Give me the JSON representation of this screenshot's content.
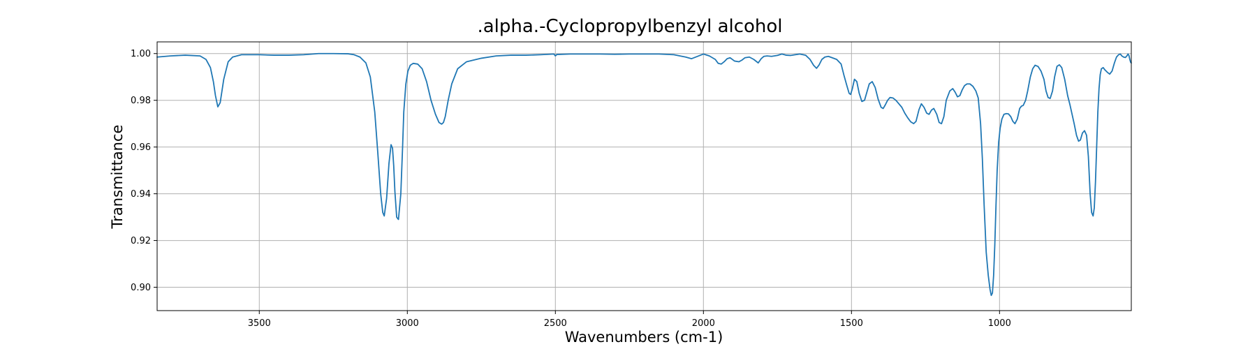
{
  "chart_data": {
    "type": "line",
    "title": ".alpha.-Cyclopropylbenzyl alcohol",
    "xlabel": "Wavenumbers (cm-1)",
    "ylabel": "Transmittance",
    "xlim": [
      3845,
      555
    ],
    "ylim": [
      0.89,
      1.005
    ],
    "x_ticks": [
      3500,
      3000,
      2500,
      2000,
      1500,
      1000
    ],
    "y_ticks": [
      0.9,
      0.92,
      0.94,
      0.96,
      0.98,
      1.0
    ],
    "x_tick_labels": [
      "3500",
      "3000",
      "2500",
      "2000",
      "1500",
      "1000"
    ],
    "y_tick_labels": [
      "0.90",
      "0.92",
      "0.94",
      "0.96",
      "0.98",
      "1.00"
    ],
    "grid": true,
    "line_color": "#1f77b4",
    "series": [
      {
        "x": [
          3845,
          3800,
          3750,
          3700,
          3680,
          3665,
          3655,
          3648,
          3640,
          3632,
          3620,
          3605,
          3590,
          3560,
          3500,
          3450,
          3400,
          3350,
          3300,
          3250,
          3200,
          3180,
          3160,
          3140,
          3125,
          3110,
          3100,
          3090,
          3083,
          3078,
          3070,
          3062,
          3055,
          3050,
          3046,
          3042,
          3036,
          3030,
          3022,
          3016,
          3012,
          3005,
          2998,
          2990,
          2980,
          2965,
          2950,
          2935,
          2920,
          2905,
          2893,
          2884,
          2878,
          2872,
          2862,
          2850,
          2830,
          2800,
          2750,
          2700,
          2650,
          2600,
          2550,
          2505,
          2500,
          2495,
          2450,
          2400,
          2350,
          2300,
          2250,
          2200,
          2150,
          2100,
          2060,
          2040,
          2000,
          1980,
          1960,
          1950,
          1940,
          1930,
          1920,
          1910,
          1895,
          1880,
          1870,
          1860,
          1845,
          1830,
          1815,
          1805,
          1796,
          1785,
          1770,
          1750,
          1735,
          1720,
          1705,
          1690,
          1675,
          1655,
          1640,
          1628,
          1618,
          1610,
          1600,
          1590,
          1578,
          1565,
          1550,
          1535,
          1525,
          1515,
          1508,
          1503,
          1497,
          1490,
          1482,
          1474,
          1465,
          1456,
          1448,
          1440,
          1430,
          1420,
          1410,
          1400,
          1393,
          1386,
          1378,
          1370,
          1360,
          1350,
          1340,
          1330,
          1320,
          1310,
          1300,
          1290,
          1282,
          1272,
          1264,
          1255,
          1246,
          1238,
          1230,
          1222,
          1212,
          1204,
          1196,
          1188,
          1180,
          1168,
          1158,
          1150,
          1142,
          1134,
          1126,
          1118,
          1110,
          1100,
          1090,
          1080,
          1072,
          1064,
          1058,
          1052,
          1045,
          1038,
          1032,
          1028,
          1024,
          1020,
          1016,
          1012,
          1008,
          1003,
          998,
          992,
          985,
          977,
          970,
          962,
          955,
          948,
          940,
          932,
          926,
          920,
          912,
          905,
          896,
          888,
          880,
          870,
          860,
          850,
          843,
          836,
          829,
          821,
          814,
          806,
          798,
          790,
          780,
          770,
          762,
          755,
          748,
          740,
          733,
          727,
          720,
          713,
          706,
          700,
          694,
          689,
          684,
          680,
          676,
          672,
          668,
          664,
          660,
          656,
          650,
          644,
          636,
          628,
          620,
          612,
          605,
          598,
          592,
          587,
          581,
          575,
          570,
          566,
          563,
          560,
          557,
          555
        ],
        "y": [
          0.9985,
          0.999,
          0.9993,
          0.999,
          0.9975,
          0.994,
          0.988,
          0.982,
          0.9772,
          0.979,
          0.989,
          0.9965,
          0.9985,
          0.9995,
          0.9995,
          0.9993,
          0.9993,
          0.9995,
          1.0,
          1.0,
          0.9999,
          0.9995,
          0.9985,
          0.996,
          0.99,
          0.975,
          0.958,
          0.94,
          0.932,
          0.9305,
          0.938,
          0.953,
          0.961,
          0.9595,
          0.952,
          0.941,
          0.93,
          0.929,
          0.94,
          0.96,
          0.975,
          0.987,
          0.9925,
          0.995,
          0.9958,
          0.9955,
          0.9935,
          0.988,
          0.98,
          0.974,
          0.9705,
          0.9698,
          0.9705,
          0.973,
          0.98,
          0.987,
          0.9935,
          0.9965,
          0.998,
          0.999,
          0.9993,
          0.9993,
          0.9995,
          0.9998,
          0.999,
          0.9996,
          0.9998,
          0.9998,
          0.9998,
          0.9997,
          0.9998,
          0.9998,
          0.9998,
          0.9995,
          0.9985,
          0.9978,
          0.9998,
          0.999,
          0.9975,
          0.9958,
          0.9955,
          0.9965,
          0.9978,
          0.9982,
          0.9968,
          0.9965,
          0.9972,
          0.9982,
          0.9985,
          0.9975,
          0.996,
          0.9978,
          0.9988,
          0.999,
          0.9988,
          0.9992,
          0.9998,
          0.9993,
          0.9992,
          0.9995,
          0.9998,
          0.9993,
          0.9975,
          0.995,
          0.9937,
          0.995,
          0.9975,
          0.9985,
          0.9988,
          0.9982,
          0.9975,
          0.9955,
          0.9905,
          0.986,
          0.983,
          0.9825,
          0.985,
          0.989,
          0.988,
          0.983,
          0.9795,
          0.98,
          0.9835,
          0.987,
          0.988,
          0.9855,
          0.9805,
          0.977,
          0.9765,
          0.978,
          0.98,
          0.9812,
          0.981,
          0.98,
          0.9785,
          0.977,
          0.9745,
          0.9725,
          0.9708,
          0.97,
          0.971,
          0.976,
          0.9785,
          0.977,
          0.9745,
          0.974,
          0.9758,
          0.9765,
          0.974,
          0.9705,
          0.97,
          0.973,
          0.98,
          0.984,
          0.985,
          0.9835,
          0.9815,
          0.982,
          0.9845,
          0.9863,
          0.987,
          0.987,
          0.986,
          0.984,
          0.981,
          0.97,
          0.955,
          0.935,
          0.915,
          0.905,
          0.899,
          0.8965,
          0.8975,
          0.905,
          0.918,
          0.935,
          0.95,
          0.962,
          0.968,
          0.972,
          0.974,
          0.9743,
          0.9742,
          0.973,
          0.971,
          0.97,
          0.972,
          0.9765,
          0.9775,
          0.9778,
          0.98,
          0.984,
          0.99,
          0.9935,
          0.995,
          0.9945,
          0.9925,
          0.989,
          0.984,
          0.9812,
          0.9808,
          0.984,
          0.99,
          0.9945,
          0.9952,
          0.994,
          0.989,
          0.982,
          0.978,
          0.974,
          0.97,
          0.965,
          0.9625,
          0.963,
          0.966,
          0.967,
          0.965,
          0.956,
          0.94,
          0.932,
          0.9305,
          0.934,
          0.945,
          0.96,
          0.975,
          0.985,
          0.991,
          0.9935,
          0.994,
          0.993,
          0.992,
          0.9912,
          0.9925,
          0.996,
          0.9985,
          0.9995,
          0.9998,
          0.999,
          0.9985,
          0.9983,
          0.999,
          0.9998,
          0.9992,
          0.9975,
          0.9962,
          0.996
        ]
      }
    ]
  }
}
